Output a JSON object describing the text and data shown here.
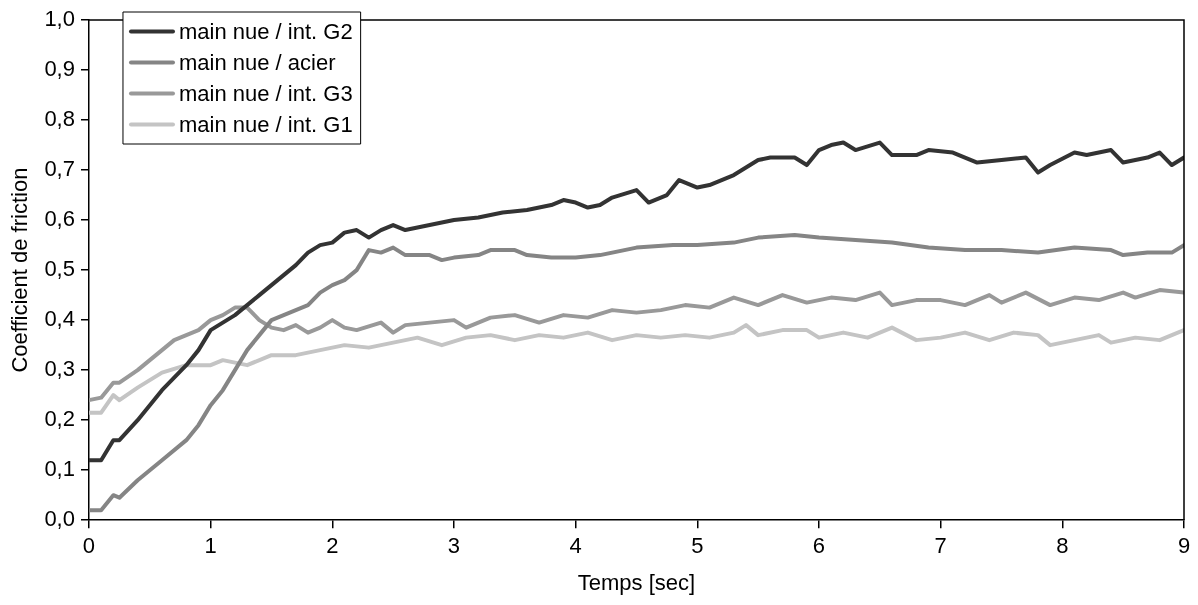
{
  "chart_data": {
    "type": "line",
    "xlabel": "Temps [sec]",
    "ylabel": "Coefficient de friction",
    "xlim": [
      0,
      9
    ],
    "xticks": [
      0,
      1,
      2,
      3,
      4,
      5,
      6,
      7,
      8,
      9
    ],
    "ylim": [
      0,
      1
    ],
    "yticks": [
      {
        "value": 0,
        "label": "0,0"
      },
      {
        "value": 0.1,
        "label": "0,1"
      },
      {
        "value": 0.2,
        "label": "0,2"
      },
      {
        "value": 0.3,
        "label": "0,3"
      },
      {
        "value": 0.4,
        "label": "0,4"
      },
      {
        "value": 0.5,
        "label": "0,5"
      },
      {
        "value": 0.6,
        "label": "0,6"
      },
      {
        "value": 0.7,
        "label": "0,7"
      },
      {
        "value": 0.8,
        "label": "0,8"
      },
      {
        "value": 0.9,
        "label": "0,9"
      },
      {
        "value": 1,
        "label": "1,0"
      }
    ],
    "grid": false,
    "legend": "top left",
    "marker": "none",
    "line_style": "solid",
    "series": [
      {
        "name": "main nue / int. G2",
        "color": "#333333",
        "x": [
          0,
          0.1,
          0.2,
          0.25,
          0.4,
          0.6,
          0.8,
          0.9,
          1.0,
          1.2,
          1.4,
          1.5,
          1.6,
          1.7,
          1.8,
          1.9,
          2.0,
          2.1,
          2.2,
          2.3,
          2.4,
          2.5,
          2.6,
          2.8,
          3.0,
          3.2,
          3.4,
          3.6,
          3.8,
          3.9,
          4.0,
          4.1,
          4.2,
          4.3,
          4.5,
          4.6,
          4.75,
          4.85,
          5.0,
          5.1,
          5.3,
          5.5,
          5.6,
          5.8,
          5.9,
          6.0,
          6.1,
          6.2,
          6.3,
          6.5,
          6.6,
          6.8,
          6.9,
          7.1,
          7.3,
          7.5,
          7.7,
          7.8,
          7.9,
          8.1,
          8.2,
          8.4,
          8.5,
          8.7,
          8.8,
          8.9,
          9.0
        ],
        "values": [
          0.12,
          0.12,
          0.16,
          0.16,
          0.2,
          0.26,
          0.31,
          0.34,
          0.38,
          0.41,
          0.45,
          0.47,
          0.49,
          0.51,
          0.535,
          0.55,
          0.555,
          0.575,
          0.58,
          0.565,
          0.58,
          0.59,
          0.58,
          0.59,
          0.6,
          0.605,
          0.615,
          0.62,
          0.63,
          0.64,
          0.635,
          0.625,
          0.63,
          0.645,
          0.66,
          0.635,
          0.65,
          0.68,
          0.665,
          0.67,
          0.69,
          0.72,
          0.725,
          0.725,
          0.71,
          0.74,
          0.75,
          0.755,
          0.74,
          0.755,
          0.73,
          0.73,
          0.74,
          0.735,
          0.715,
          0.72,
          0.725,
          0.695,
          0.71,
          0.735,
          0.73,
          0.74,
          0.715,
          0.725,
          0.735,
          0.71,
          0.725
        ]
      },
      {
        "name": "main nue / acier",
        "color": "#858585",
        "x": [
          0,
          0.1,
          0.2,
          0.25,
          0.4,
          0.6,
          0.8,
          0.9,
          1.0,
          1.1,
          1.2,
          1.3,
          1.4,
          1.5,
          1.6,
          1.7,
          1.8,
          1.9,
          2.0,
          2.1,
          2.2,
          2.3,
          2.4,
          2.5,
          2.6,
          2.8,
          2.9,
          3.0,
          3.2,
          3.3,
          3.5,
          3.6,
          3.8,
          4.0,
          4.2,
          4.5,
          4.8,
          5.0,
          5.3,
          5.5,
          5.8,
          6.0,
          6.3,
          6.6,
          6.9,
          7.2,
          7.5,
          7.8,
          8.1,
          8.4,
          8.5,
          8.7,
          8.9,
          9.0
        ],
        "values": [
          0.02,
          0.02,
          0.05,
          0.045,
          0.08,
          0.12,
          0.16,
          0.19,
          0.23,
          0.26,
          0.3,
          0.34,
          0.37,
          0.4,
          0.41,
          0.42,
          0.43,
          0.455,
          0.47,
          0.48,
          0.5,
          0.54,
          0.535,
          0.545,
          0.53,
          0.53,
          0.52,
          0.525,
          0.53,
          0.54,
          0.54,
          0.53,
          0.525,
          0.525,
          0.53,
          0.545,
          0.55,
          0.55,
          0.555,
          0.565,
          0.57,
          0.565,
          0.56,
          0.555,
          0.545,
          0.54,
          0.54,
          0.535,
          0.545,
          0.54,
          0.53,
          0.535,
          0.535,
          0.55
        ]
      },
      {
        "name": "main nue / int. G3",
        "color": "#999999",
        "x": [
          0,
          0.1,
          0.2,
          0.25,
          0.4,
          0.6,
          0.7,
          0.9,
          1.0,
          1.1,
          1.2,
          1.3,
          1.4,
          1.5,
          1.6,
          1.7,
          1.8,
          1.9,
          2.0,
          2.1,
          2.2,
          2.4,
          2.5,
          2.6,
          2.8,
          3.0,
          3.1,
          3.3,
          3.5,
          3.7,
          3.9,
          4.1,
          4.3,
          4.5,
          4.7,
          4.9,
          5.1,
          5.3,
          5.5,
          5.7,
          5.9,
          6.1,
          6.3,
          6.5,
          6.6,
          6.8,
          7.0,
          7.2,
          7.4,
          7.5,
          7.7,
          7.9,
          8.1,
          8.3,
          8.5,
          8.6,
          8.8,
          9.0
        ],
        "values": [
          0.24,
          0.245,
          0.275,
          0.275,
          0.3,
          0.34,
          0.36,
          0.38,
          0.4,
          0.41,
          0.425,
          0.425,
          0.4,
          0.385,
          0.38,
          0.39,
          0.375,
          0.385,
          0.4,
          0.385,
          0.38,
          0.395,
          0.375,
          0.39,
          0.395,
          0.4,
          0.385,
          0.405,
          0.41,
          0.395,
          0.41,
          0.405,
          0.42,
          0.415,
          0.42,
          0.43,
          0.425,
          0.445,
          0.43,
          0.45,
          0.435,
          0.445,
          0.44,
          0.455,
          0.43,
          0.44,
          0.44,
          0.43,
          0.45,
          0.435,
          0.455,
          0.43,
          0.445,
          0.44,
          0.455,
          0.445,
          0.46,
          0.455
        ]
      },
      {
        "name": "main nue / int. G1",
        "color": "#c4c4c4",
        "x": [
          0,
          0.1,
          0.2,
          0.25,
          0.4,
          0.6,
          0.8,
          1.0,
          1.1,
          1.3,
          1.5,
          1.7,
          1.9,
          2.1,
          2.3,
          2.5,
          2.7,
          2.9,
          3.1,
          3.3,
          3.5,
          3.7,
          3.9,
          4.1,
          4.3,
          4.5,
          4.7,
          4.9,
          5.1,
          5.3,
          5.4,
          5.5,
          5.7,
          5.9,
          6.0,
          6.2,
          6.4,
          6.6,
          6.8,
          7.0,
          7.2,
          7.4,
          7.6,
          7.8,
          7.9,
          8.1,
          8.3,
          8.4,
          8.6,
          8.8,
          9.0
        ],
        "values": [
          0.215,
          0.215,
          0.25,
          0.24,
          0.265,
          0.295,
          0.31,
          0.31,
          0.32,
          0.31,
          0.33,
          0.33,
          0.34,
          0.35,
          0.345,
          0.355,
          0.365,
          0.35,
          0.365,
          0.37,
          0.36,
          0.37,
          0.365,
          0.375,
          0.36,
          0.37,
          0.365,
          0.37,
          0.365,
          0.375,
          0.39,
          0.37,
          0.38,
          0.38,
          0.365,
          0.375,
          0.365,
          0.385,
          0.36,
          0.365,
          0.375,
          0.36,
          0.375,
          0.37,
          0.35,
          0.36,
          0.37,
          0.355,
          0.365,
          0.36,
          0.38
        ]
      }
    ]
  }
}
